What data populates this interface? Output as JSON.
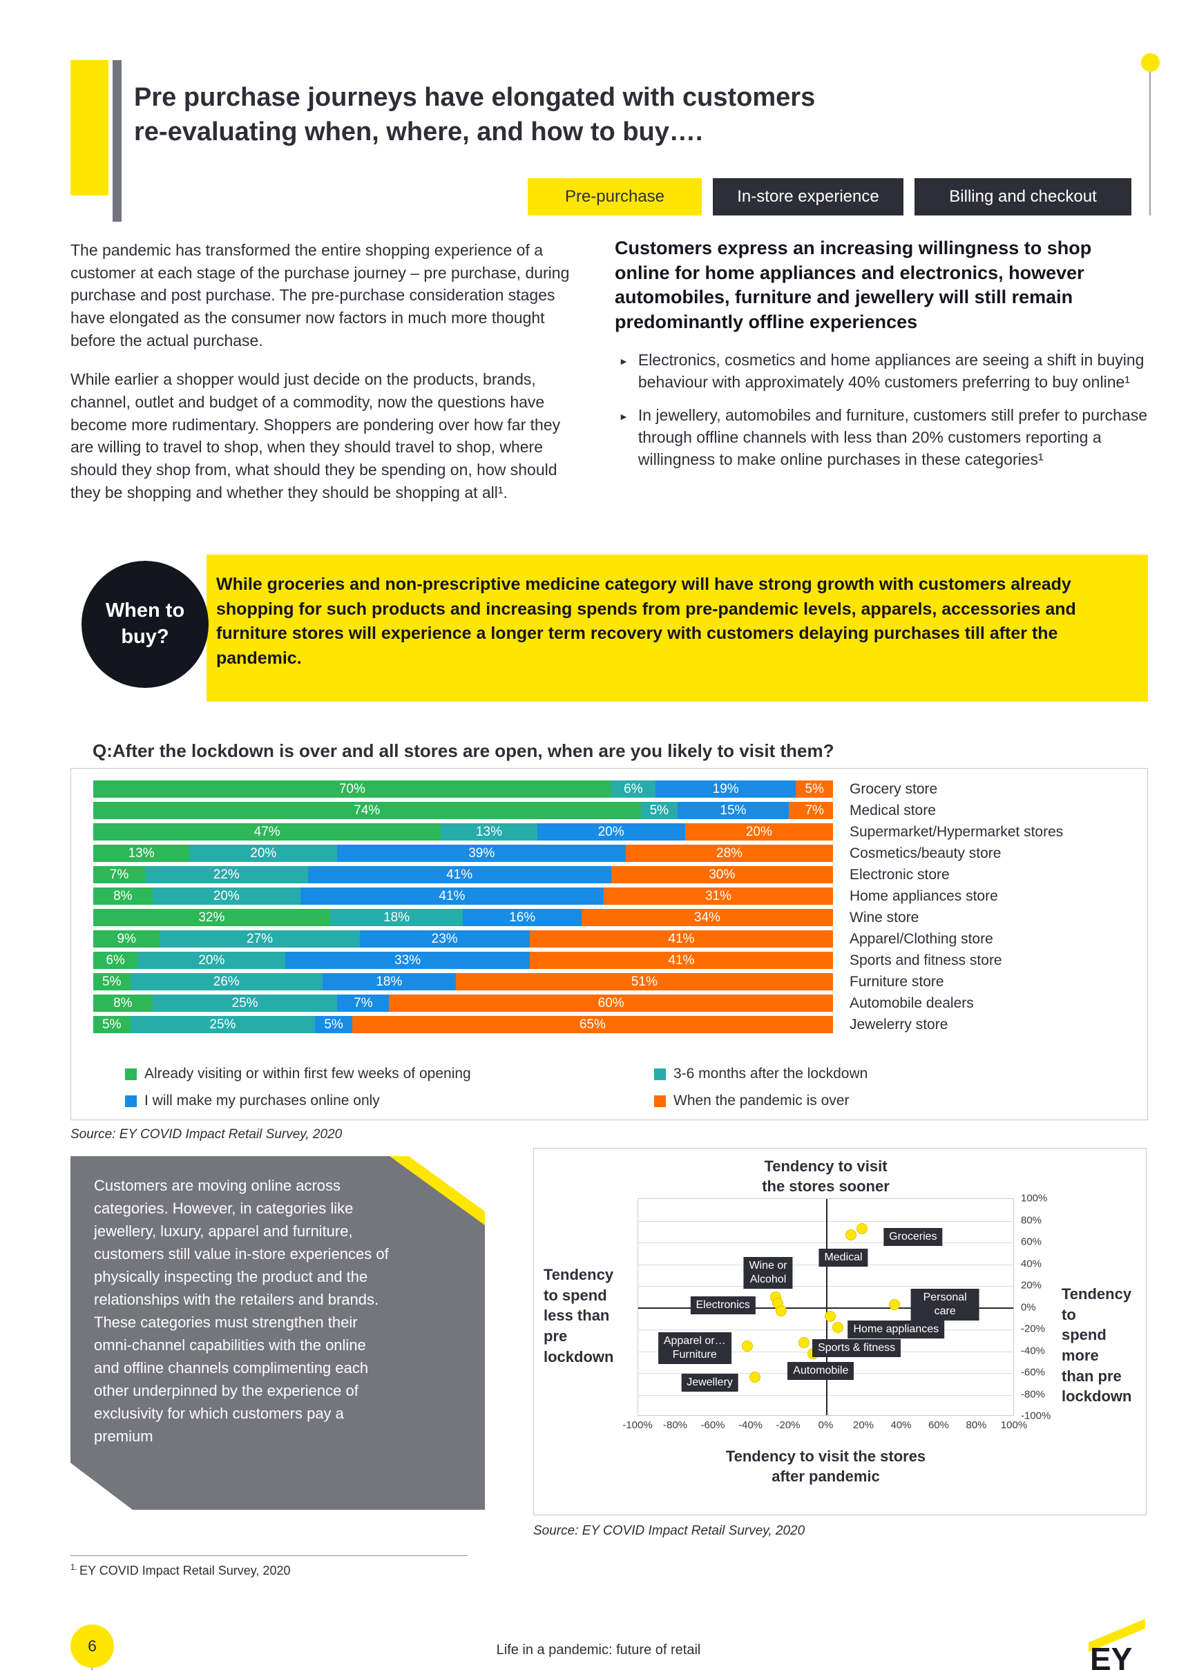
{
  "header": {
    "title": "Pre purchase journeys have elongated with customers\nre-evaluating when, where, and how to buy….",
    "tabs": [
      {
        "label": "Pre-purchase",
        "active": true
      },
      {
        "label": "In-store experience",
        "active": false
      },
      {
        "label": "Billing and checkout",
        "active": false
      }
    ]
  },
  "intro": {
    "p1": "The pandemic has transformed the entire shopping experience of a customer at each stage of the purchase journey – pre purchase, during purchase and post purchase. The pre-purchase consideration stages have elongated as the consumer now factors in much more thought before the actual purchase.",
    "p2": "While earlier a shopper would just decide on the products, brands, channel, outlet and budget of a commodity, now the questions have become more rudimentary. Shoppers are pondering over how far they are willing to travel to shop, when they should travel to shop, where should they shop from, what should they be spending on, how should they be shopping and whether they should be shopping at all¹."
  },
  "right_panel": {
    "heading": "Customers express an increasing willingness to shop online for home appliances and electronics, however automobiles, furniture and jewellery will still remain predominantly offline experiences",
    "bullet_icon": "►",
    "bullets": [
      "Electronics, cosmetics and home appliances are seeing a shift in buying behaviour with approximately 40% customers preferring to buy online¹",
      "In jewellery, automobiles and furniture, customers still prefer to purchase through offline channels with less than 20% customers reporting a willingness to make online purchases in these categories¹"
    ]
  },
  "callout": {
    "circle_label": "When to\nbuy?",
    "text": "While groceries and non-prescriptive medicine category will have strong growth with customers already shopping for such products and increasing spends from pre-pandemic levels, apparels, accessories and furniture stores will experience a longer term recovery with customers delaying purchases till after the pandemic."
  },
  "insight_box": {
    "text": "Customers are moving online across categories. However, in categories like jewellery, luxury, apparel and furniture, customers still value in-store experiences of physically inspecting the product and the relationships with the retailers and brands. These categories must strengthen their omni-channel capabilities with the online and offline channels complimenting each other underpinned by the experience of exclusivity for which customers pay a premium"
  },
  "chart_data": [
    {
      "type": "bar",
      "stacked": true,
      "orientation": "horizontal",
      "title": "Q:After the lockdown is over and all stores are open, when are you likely to visit them?",
      "unit": "%",
      "categories": [
        "Grocery store",
        "Medical store",
        "Supermarket/Hypermarket stores",
        "Cosmetics/beauty store",
        "Electronic store",
        "Home appliances store",
        "Wine store",
        "Apparel/Clothing store",
        "Sports and fitness store",
        "Furniture store",
        "Automobile dealers",
        "Jewelerry store"
      ],
      "series": [
        {
          "name": "Already visiting or within first few weeks of opening",
          "color": "#2DB757",
          "values": [
            70,
            74,
            47,
            13,
            7,
            8,
            32,
            9,
            6,
            5,
            8,
            5
          ]
        },
        {
          "name": "3-6 months after the lockdown",
          "color": "#27ACAA",
          "values": [
            6,
            5,
            13,
            20,
            22,
            20,
            18,
            27,
            20,
            26,
            25,
            25
          ]
        },
        {
          "name": "I will make my purchases online only",
          "color": "#188CE5",
          "values": [
            19,
            15,
            20,
            39,
            41,
            41,
            16,
            23,
            33,
            18,
            7,
            5
          ]
        },
        {
          "name": "When the pandemic is over",
          "color": "#FF6D00",
          "values": [
            5,
            7,
            20,
            28,
            30,
            31,
            34,
            41,
            41,
            51,
            60,
            65
          ]
        }
      ],
      "legend_columns": [
        [
          0,
          2
        ],
        [
          1,
          3
        ]
      ],
      "legend_position": "bottom",
      "source": "Source: EY COVID Impact Retail Survey, 2020"
    },
    {
      "type": "scatter",
      "top_label": "Tendency to visit\nthe stores sooner",
      "bottom_label": "Tendency to visit the stores\nafter pandemic",
      "left_label": "Tendency\nto spend\nless than\npre\nlockdown",
      "right_label": "Tendency to\nspend more\nthan pre\nlockdown",
      "xlim": [
        -100,
        100
      ],
      "ylim": [
        -100,
        100
      ],
      "x_ticks": [
        "-100%",
        "-80%",
        "-60%",
        "-40%",
        "-20%",
        "0%",
        "20%",
        "40%",
        "60%",
        "80%",
        "100%"
      ],
      "y_ticks": [
        "100%",
        "80%",
        "60%",
        "40%",
        "20%",
        "0%",
        "-20%",
        "-40%",
        "-60%",
        "-80%",
        "-100%"
      ],
      "point_color": "#FFE600",
      "grid": "horizontal",
      "points": [
        {
          "label": "Groceries",
          "dots": [
            [
              13,
              67
            ],
            [
              19,
              73
            ]
          ],
          "label_pos": [
            46,
            65
          ]
        },
        {
          "label": "Medical",
          "dots": [
            [
              16,
              49
            ]
          ],
          "label_pos": [
            9,
            46
          ]
        },
        {
          "label": "Wine or\nAlcohol",
          "dots": [
            [
              -27,
              10
            ]
          ],
          "label_pos": [
            -31,
            32
          ]
        },
        {
          "label": "Electronics",
          "dots": [
            [
              -26,
              4
            ],
            [
              -24,
              -3
            ]
          ],
          "label_pos": [
            -55,
            2
          ]
        },
        {
          "label": "Personal care",
          "dots": [
            [
              36,
              3
            ]
          ],
          "label_pos": [
            63,
            3
          ]
        },
        {
          "label": "Home appliances",
          "dots": [
            [
              6,
              -18
            ],
            [
              2,
              -8
            ]
          ],
          "label_pos": [
            37,
            -20
          ]
        },
        {
          "label": "Sports & fitness",
          "dots": [
            [
              -12,
              -32
            ]
          ],
          "label_pos": [
            16,
            -37
          ]
        },
        {
          "label": "Apparel or…\nFurniture",
          "dots": [
            [
              -42,
              -35
            ]
          ],
          "label_pos": [
            -70,
            -37
          ]
        },
        {
          "label": "Automobile",
          "dots": [
            [
              -7,
              -42
            ]
          ],
          "label_pos": [
            -3,
            -58
          ]
        },
        {
          "label": "Jewellery",
          "dots": [
            [
              -38,
              -64
            ]
          ],
          "label_pos": [
            -62,
            -69
          ]
        }
      ],
      "source": "Source: EY COVID Impact Retail Survey, 2020"
    }
  ],
  "footnote": {
    "marker": "1.",
    "text": "EY COVID Impact Retail Survey, 2020"
  },
  "footer": {
    "page_number": "6",
    "center_text": "Life in a pandemic: future of retail",
    "logo": "EY"
  },
  "colors": {
    "brand_yellow": "#FFE600",
    "brand_dark": "#2E2E38",
    "green": "#2DB757",
    "teal": "#27ACAA",
    "blue": "#188CE5",
    "orange": "#FF6D00",
    "gray_panel": "#747480"
  }
}
